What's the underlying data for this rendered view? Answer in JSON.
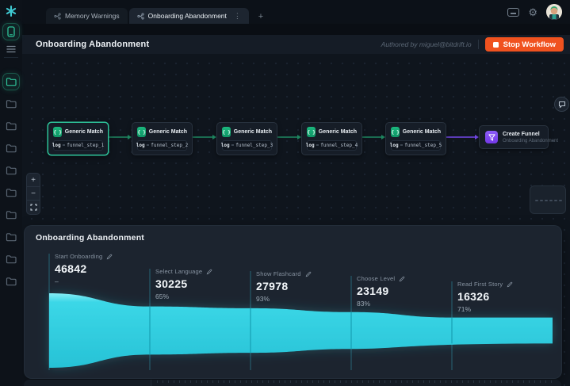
{
  "topbar": {
    "tabs": [
      {
        "label": "Memory Warnings",
        "active": false
      },
      {
        "label": "Onboarding Abandonment",
        "active": true
      }
    ],
    "new_tab_label": "+",
    "right_icons": [
      "keyboard-icon",
      "settings-gear-icon",
      "user-avatar"
    ]
  },
  "sidebar": {
    "icons": [
      "app-logo",
      "device-sessions",
      "list-view"
    ],
    "active_folder_index": 0,
    "folder_count": 9
  },
  "header": {
    "title": "Onboarding Abandonment",
    "authored_by": "Authored by miguel@bitdrift.io",
    "stop_button": "Stop Workflow"
  },
  "canvas": {
    "nodes": [
      {
        "title": "Generic Match",
        "filter": {
          "field": "log",
          "op": "=",
          "value": "funnel_step_1"
        },
        "selected": true
      },
      {
        "title": "Generic Match",
        "filter": {
          "field": "log",
          "op": "=",
          "value": "funnel_step_2"
        },
        "selected": false
      },
      {
        "title": "Generic Match",
        "filter": {
          "field": "log",
          "op": "=",
          "value": "funnel_step_3"
        },
        "selected": false
      },
      {
        "title": "Generic Match",
        "filter": {
          "field": "log",
          "op": "=",
          "value": "funnel_step_4"
        },
        "selected": false
      },
      {
        "title": "Generic Match",
        "filter": {
          "field": "log",
          "op": "=",
          "value": "funnel_step_5"
        },
        "selected": false
      }
    ],
    "funnel_node": {
      "title": "Create Funnel",
      "subtitle": "Onboarding Abandonment"
    },
    "zoom_controls": {
      "zoom_in": "+",
      "zoom_out": "−",
      "fit_view": "fit-view-icon"
    },
    "minimap_dash_count": 6
  },
  "funnel_panel": {
    "title": "Onboarding Abandonment"
  },
  "chart_data": {
    "type": "funnel",
    "title": "Onboarding Abandonment",
    "orientation": "horizontal",
    "steps": [
      {
        "label": "Start Onboarding",
        "value": 46842,
        "conversion": "–"
      },
      {
        "label": "Select Language",
        "value": 30225,
        "conversion": "65%"
      },
      {
        "label": "Show Flashcard",
        "value": 27978,
        "conversion": "93%"
      },
      {
        "label": "Choose Level",
        "value": 23149,
        "conversion": "83%"
      },
      {
        "label": "Read First Story",
        "value": 16326,
        "conversion": "71%"
      }
    ]
  },
  "colors": {
    "accent_green": "#2ec49a",
    "node_icon_green_top": "#1cb87e",
    "edge_green": "#1f8a63",
    "edge_purple": "#7448ea",
    "funnel_purple": "#8b5cf6",
    "stop_orange": "#f0521f",
    "funnel_fill_top": "#86edf5",
    "funnel_fill_mid": "#3bd7e7",
    "funnel_fill_bottom": "#27c2d6",
    "divider_teal": "#2a7386",
    "divider_on_fill": "#18a0b4"
  }
}
